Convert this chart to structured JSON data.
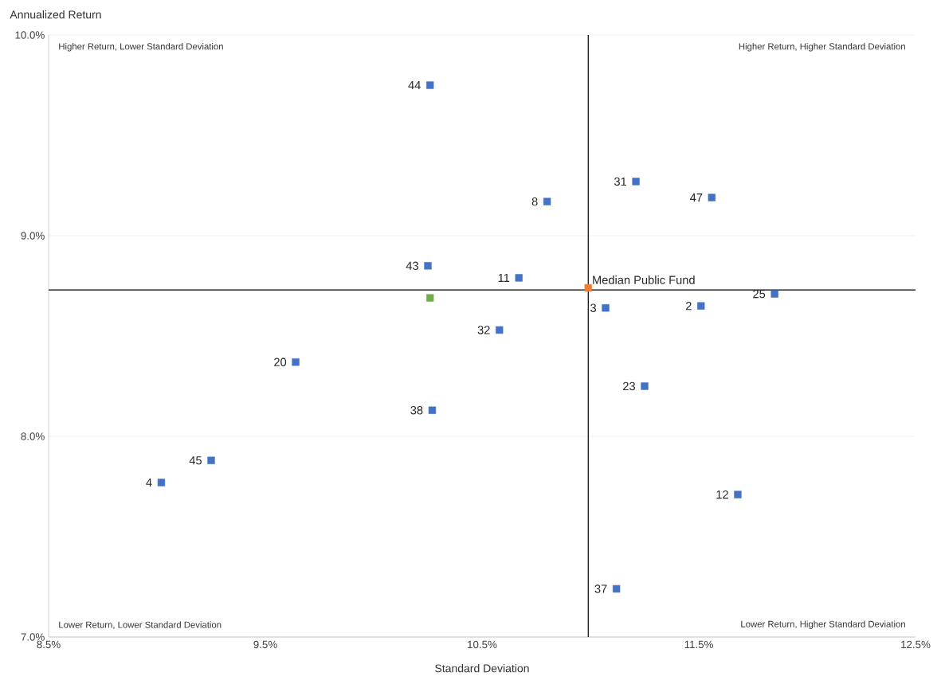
{
  "chart_data": {
    "type": "scatter",
    "xlabel": "Standard Deviation",
    "ylabel": "Annualized Return",
    "xlim": [
      8.5,
      12.5
    ],
    "ylim": [
      7.0,
      10.0
    ],
    "xticks": [
      {
        "value": 8.5,
        "label": "8.5%"
      },
      {
        "value": 9.5,
        "label": "9.5%"
      },
      {
        "value": 10.5,
        "label": "10.5%"
      },
      {
        "value": 11.5,
        "label": "11.5%"
      },
      {
        "value": 12.5,
        "label": "12.5%"
      }
    ],
    "yticks": [
      {
        "value": 7.0,
        "label": "7.0%"
      },
      {
        "value": 8.0,
        "label": "8.0%"
      },
      {
        "value": 9.0,
        "label": "9.0%"
      },
      {
        "value": 10.0,
        "label": "10.0%"
      }
    ],
    "grid": "y",
    "marker": "square",
    "series": [
      {
        "color": "#4472c4",
        "x": [
          10.26,
          11.21,
          11.56,
          10.8,
          10.25,
          10.67,
          11.07,
          11.51,
          11.85,
          10.58,
          9.64,
          11.25,
          10.27,
          9.25,
          9.02,
          11.68,
          11.12
        ],
        "values": [
          9.75,
          9.27,
          9.19,
          9.17,
          8.85,
          8.79,
          8.64,
          8.65,
          8.71,
          8.53,
          8.37,
          8.25,
          8.13,
          7.88,
          7.77,
          7.71,
          7.24
        ]
      },
      {
        "name": "Median Public Fund",
        "color": "#ed7d31",
        "x": [
          10.99
        ],
        "values": [
          8.74
        ]
      },
      {
        "color": "#70ad47",
        "x": [
          10.26
        ],
        "values": [
          8.69
        ]
      }
    ],
    "ref_lines": [
      {
        "axis": "x",
        "value": 10.99,
        "color": "#000000"
      },
      {
        "axis": "y",
        "value": 8.73,
        "color": "#000000"
      }
    ],
    "annotations": [
      "Higher Return, Lower Standard Deviation",
      "Higher Return, Higher Standard Deviation",
      "Lower Return, Lower Standard Deviation",
      "Lower Return, Higher Standard Deviation",
      {
        "text": "44",
        "x": 10.26,
        "y": 9.75
      },
      {
        "text": "31",
        "x": 11.21,
        "y": 9.27
      },
      {
        "text": "47",
        "x": 11.56,
        "y": 9.19
      },
      {
        "text": "8",
        "x": 10.8,
        "y": 9.17
      },
      {
        "text": "43",
        "x": 10.25,
        "y": 8.85
      },
      {
        "text": "11",
        "x": 10.67,
        "y": 8.79
      },
      {
        "text": "3",
        "x": 11.07,
        "y": 8.64
      },
      {
        "text": "2",
        "x": 11.51,
        "y": 8.65
      },
      {
        "text": "25",
        "x": 11.85,
        "y": 8.71
      },
      {
        "text": "32",
        "x": 10.58,
        "y": 8.53
      },
      {
        "text": "20",
        "x": 9.64,
        "y": 8.37
      },
      {
        "text": "23",
        "x": 11.25,
        "y": 8.25
      },
      {
        "text": "38",
        "x": 10.27,
        "y": 8.13
      },
      {
        "text": "45",
        "x": 9.25,
        "y": 7.88
      },
      {
        "text": "4",
        "x": 9.02,
        "y": 7.77
      },
      {
        "text": "12",
        "x": 11.68,
        "y": 7.71
      },
      {
        "text": "37",
        "x": 11.12,
        "y": 7.24
      }
    ]
  }
}
